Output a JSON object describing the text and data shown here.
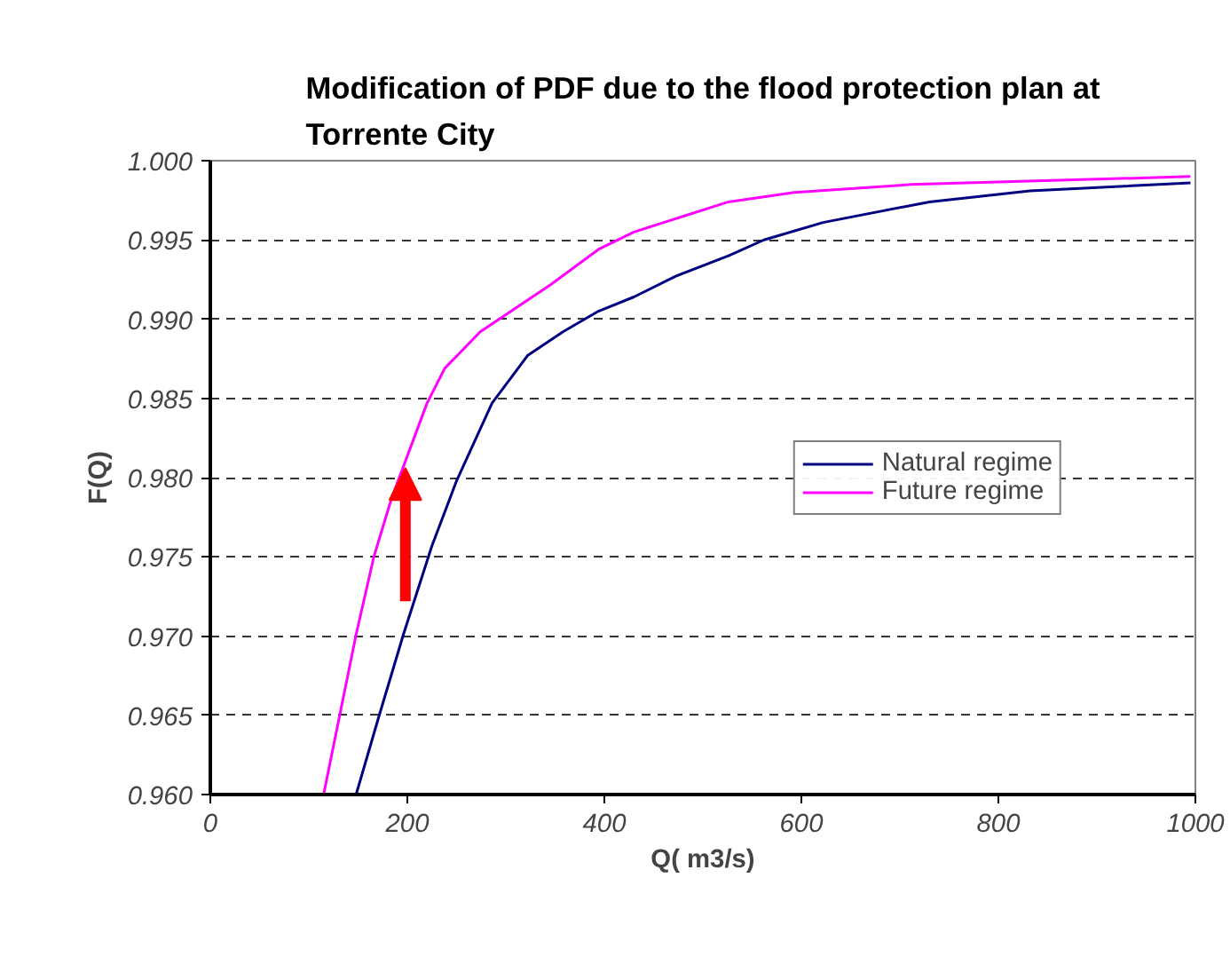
{
  "chart_data": {
    "type": "line",
    "title": "Modification of PDF due to the flood protection plan at Torrente City",
    "xlabel": "Q( m3/s)",
    "ylabel": "F(Q)",
    "xlim": [
      0,
      1000
    ],
    "xticks": [
      0,
      200,
      400,
      600,
      800,
      1000
    ],
    "ylim": [
      0.96,
      1.0
    ],
    "yticks": [
      {
        "value": 0.96,
        "label": "0.960"
      },
      {
        "value": 0.965,
        "label": "0.965"
      },
      {
        "value": 0.97,
        "label": "0.970"
      },
      {
        "value": 0.975,
        "label": "0.975"
      },
      {
        "value": 0.98,
        "label": "0.980"
      },
      {
        "value": 0.985,
        "label": "0.985"
      },
      {
        "value": 0.99,
        "label": "0.990"
      },
      {
        "value": 0.995,
        "label": "0.995"
      },
      {
        "value": 1.0,
        "label": "1.000"
      }
    ],
    "grid": "y",
    "legend": "right",
    "marker": "none",
    "line_style": "solid",
    "series": [
      {
        "name": "Natural regime",
        "color": "#000080",
        "x": [
          148,
          171,
          196,
          225,
          250,
          286,
          322,
          358,
          394,
          430,
          472,
          526,
          562,
          622,
          730,
          832,
          995
        ],
        "values": [
          0.96,
          0.9649,
          0.9701,
          0.9757,
          0.9798,
          0.9847,
          0.9877,
          0.9892,
          0.9905,
          0.9914,
          0.9927,
          0.994,
          0.995,
          0.9961,
          0.9974,
          0.9981,
          0.9986
        ]
      },
      {
        "name": "Future regime",
        "color": "#ff00ff",
        "x": [
          115,
          148,
          166,
          184,
          220,
          238,
          274,
          346,
          394,
          430,
          526,
          593,
          712,
          995
        ],
        "values": [
          0.96,
          0.9701,
          0.975,
          0.9787,
          0.9847,
          0.9869,
          0.9892,
          0.9922,
          0.9944,
          0.9955,
          0.9974,
          0.998,
          0.9985,
          0.999
        ]
      }
    ]
  }
}
